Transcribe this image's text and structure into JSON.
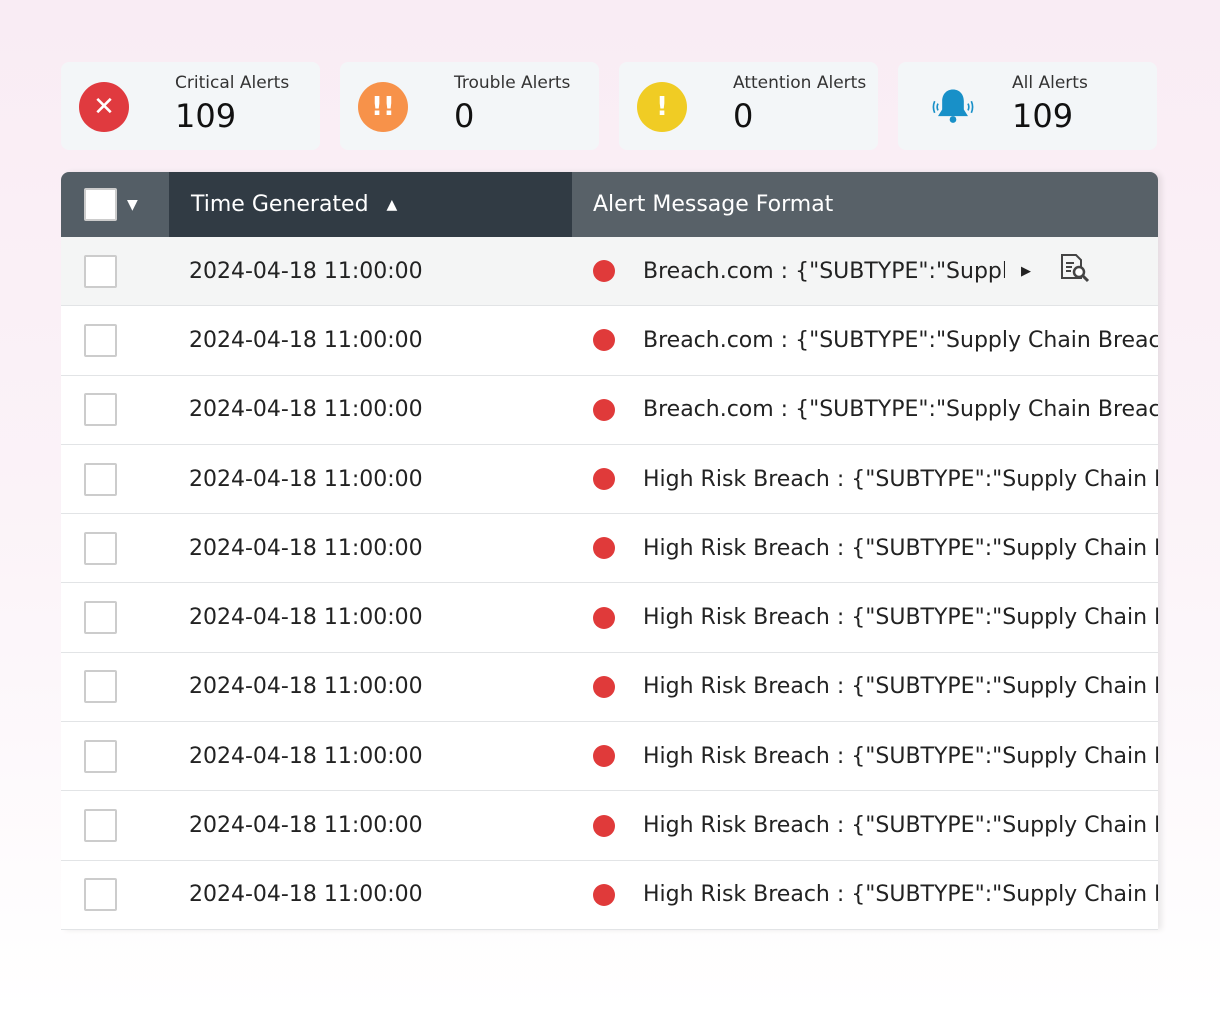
{
  "cards": [
    {
      "label": "Critical Alerts",
      "value": "109",
      "icon": "close-circle-icon",
      "color": "#e03a3f",
      "glyph": "✕"
    },
    {
      "label": "Trouble Alerts",
      "value": "0",
      "icon": "double-exclamation-icon",
      "color": "#f7924a",
      "glyph": "!!"
    },
    {
      "label": "Attention Alerts",
      "value": "0",
      "icon": "exclamation-icon",
      "color": "#f0cc24",
      "glyph": "!"
    },
    {
      "label": "All Alerts",
      "value": "109",
      "icon": "ringing-bell-icon",
      "color": "#1890c8"
    }
  ],
  "table": {
    "headers": {
      "time": "Time Generated",
      "message": "Alert Message Format"
    },
    "rows": [
      {
        "time": "2024-04-18 11:00:00",
        "message": "Breach.com : {\"SUBTYPE\":\"Supply Chain Breach"
      },
      {
        "time": "2024-04-18 11:00:00",
        "message": "Breach.com : {\"SUBTYPE\":\"Supply Chain Breach"
      },
      {
        "time": "2024-04-18 11:00:00",
        "message": "Breach.com : {\"SUBTYPE\":\"Supply Chain Breach"
      },
      {
        "time": "2024-04-18 11:00:00",
        "message": "High Risk Breach : {\"SUBTYPE\":\"Supply Chain Breach"
      },
      {
        "time": "2024-04-18 11:00:00",
        "message": "High Risk Breach : {\"SUBTYPE\":\"Supply Chain Breach"
      },
      {
        "time": "2024-04-18 11:00:00",
        "message": "High Risk Breach : {\"SUBTYPE\":\"Supply Chain Breach"
      },
      {
        "time": "2024-04-18 11:00:00",
        "message": "High Risk Breach : {\"SUBTYPE\":\"Supply Chain Breach"
      },
      {
        "time": "2024-04-18 11:00:00",
        "message": "High Risk Breach : {\"SUBTYPE\":\"Supply Chain Breach"
      },
      {
        "time": "2024-04-18 11:00:00",
        "message": "High Risk Breach : {\"SUBTYPE\":\"Supply Chain Breach"
      },
      {
        "time": "2024-04-18 11:00:00",
        "message": "High Risk Breach : {\"SUBTYPE\":\"Supply Chain Breach"
      }
    ],
    "severity_color": "#e03a3a"
  }
}
